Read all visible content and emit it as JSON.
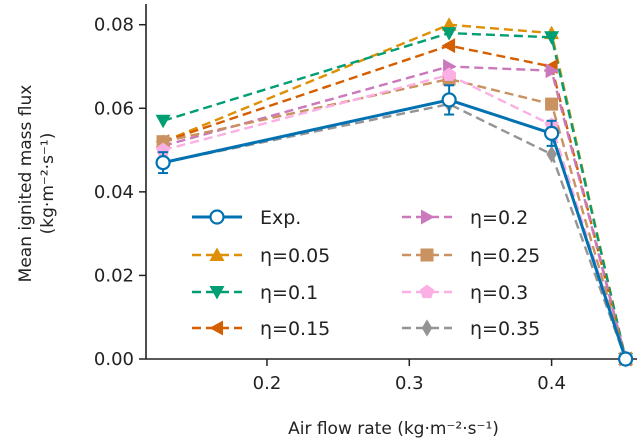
{
  "chart_data": {
    "type": "line",
    "xlabel": "Air flow rate (kg·m⁻²·s⁻¹)",
    "ylabel_line1": "Mean ignited mass flux",
    "ylabel_line2": "(kg·m⁻²·s⁻¹)",
    "xlim": [
      0.115,
      0.46
    ],
    "ylim": [
      0.0,
      0.084
    ],
    "xticks": [
      0.2,
      0.3,
      0.4
    ],
    "xtick_labels": [
      "0.2",
      "0.3",
      "0.4"
    ],
    "yticks": [
      0.0,
      0.02,
      0.04,
      0.06,
      0.08
    ],
    "ytick_labels": [
      "0.00",
      "0.02",
      "0.04",
      "0.06",
      "0.08"
    ],
    "x": [
      0.127,
      0.328,
      0.4,
      0.452
    ],
    "legend_position": "lower-left",
    "series": [
      {
        "name": "Exp.",
        "color": "#0072b2",
        "marker": "circle-open",
        "dashed": false,
        "values": [
          0.047,
          0.062,
          0.054,
          0.0
        ],
        "errors": [
          0.0025,
          0.0035,
          0.003,
          0.0
        ]
      },
      {
        "name": "η=0.05",
        "color": "#de8f05",
        "marker": "triangle-up",
        "dashed": true,
        "values": [
          0.052,
          0.08,
          0.078,
          0.0
        ]
      },
      {
        "name": "η=0.1",
        "color": "#029e73",
        "marker": "triangle-down",
        "dashed": true,
        "values": [
          0.057,
          0.078,
          0.077,
          0.0
        ]
      },
      {
        "name": "η=0.15",
        "color": "#d55e00",
        "marker": "triangle-left",
        "dashed": true,
        "values": [
          0.052,
          0.075,
          0.07,
          0.0
        ]
      },
      {
        "name": "η=0.2",
        "color": "#cc78bc",
        "marker": "triangle-right",
        "dashed": true,
        "values": [
          0.051,
          0.07,
          0.069,
          0.0
        ]
      },
      {
        "name": "η=0.25",
        "color": "#ca9161",
        "marker": "square",
        "dashed": true,
        "values": [
          0.052,
          0.067,
          0.061,
          0.0
        ]
      },
      {
        "name": "η=0.3",
        "color": "#fbafe4",
        "marker": "pentagon",
        "dashed": true,
        "values": [
          0.05,
          0.068,
          0.056,
          0.0
        ]
      },
      {
        "name": "η=0.35",
        "color": "#949494",
        "marker": "diamond",
        "dashed": true,
        "values": [
          0.047,
          0.061,
          0.049,
          0.0
        ]
      }
    ]
  }
}
